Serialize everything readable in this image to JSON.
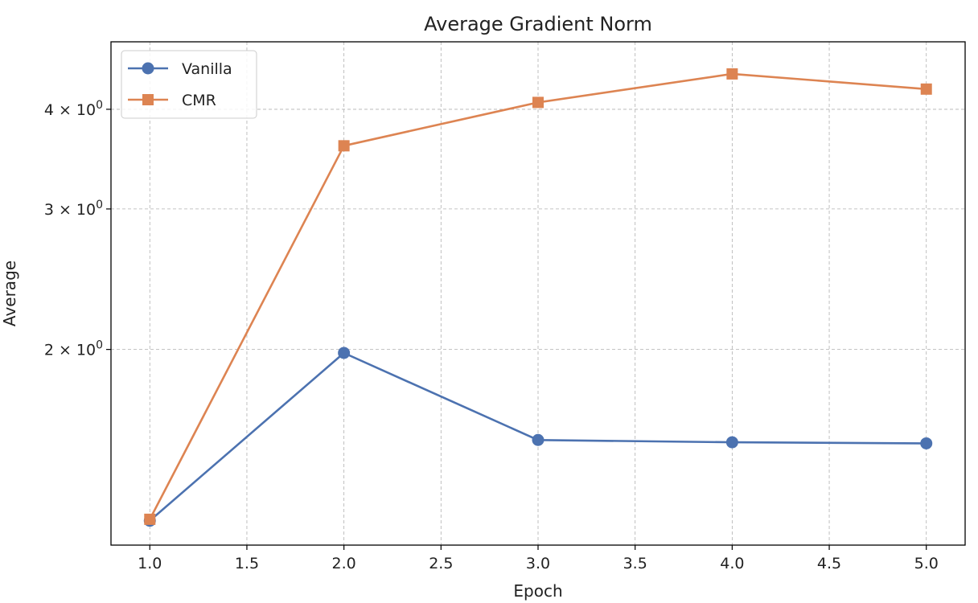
{
  "chart_data": {
    "type": "line",
    "title": "Average Gradient Norm",
    "xlabel": "Epoch",
    "ylabel": "Average",
    "yscale": "log",
    "xlim": [
      0.8,
      5.2
    ],
    "ylim": [
      1.137,
      4.86
    ],
    "grid": true,
    "legend_position": "top-left",
    "x_ticks": [
      1.0,
      1.5,
      2.0,
      2.5,
      3.0,
      3.5,
      4.0,
      4.5,
      5.0
    ],
    "x_tick_labels": [
      "1.0",
      "1.5",
      "2.0",
      "2.5",
      "3.0",
      "3.5",
      "4.0",
      "4.5",
      "5.0"
    ],
    "y_ticks": [
      2,
      3,
      4
    ],
    "y_tick_labels": [
      {
        "base": "2 × 10",
        "exp": "0"
      },
      {
        "base": "3 × 10",
        "exp": "0"
      },
      {
        "base": "4 × 10",
        "exp": "0"
      }
    ],
    "x": [
      1,
      2,
      3,
      4,
      5
    ],
    "series": [
      {
        "name": "Vanilla",
        "color": "#4C72B0",
        "marker": "circle",
        "values": [
          1.22,
          1.98,
          1.54,
          1.53,
          1.525
        ]
      },
      {
        "name": "CMR",
        "color": "#DD8452",
        "marker": "square",
        "values": [
          1.225,
          3.6,
          4.08,
          4.43,
          4.24
        ]
      }
    ]
  }
}
